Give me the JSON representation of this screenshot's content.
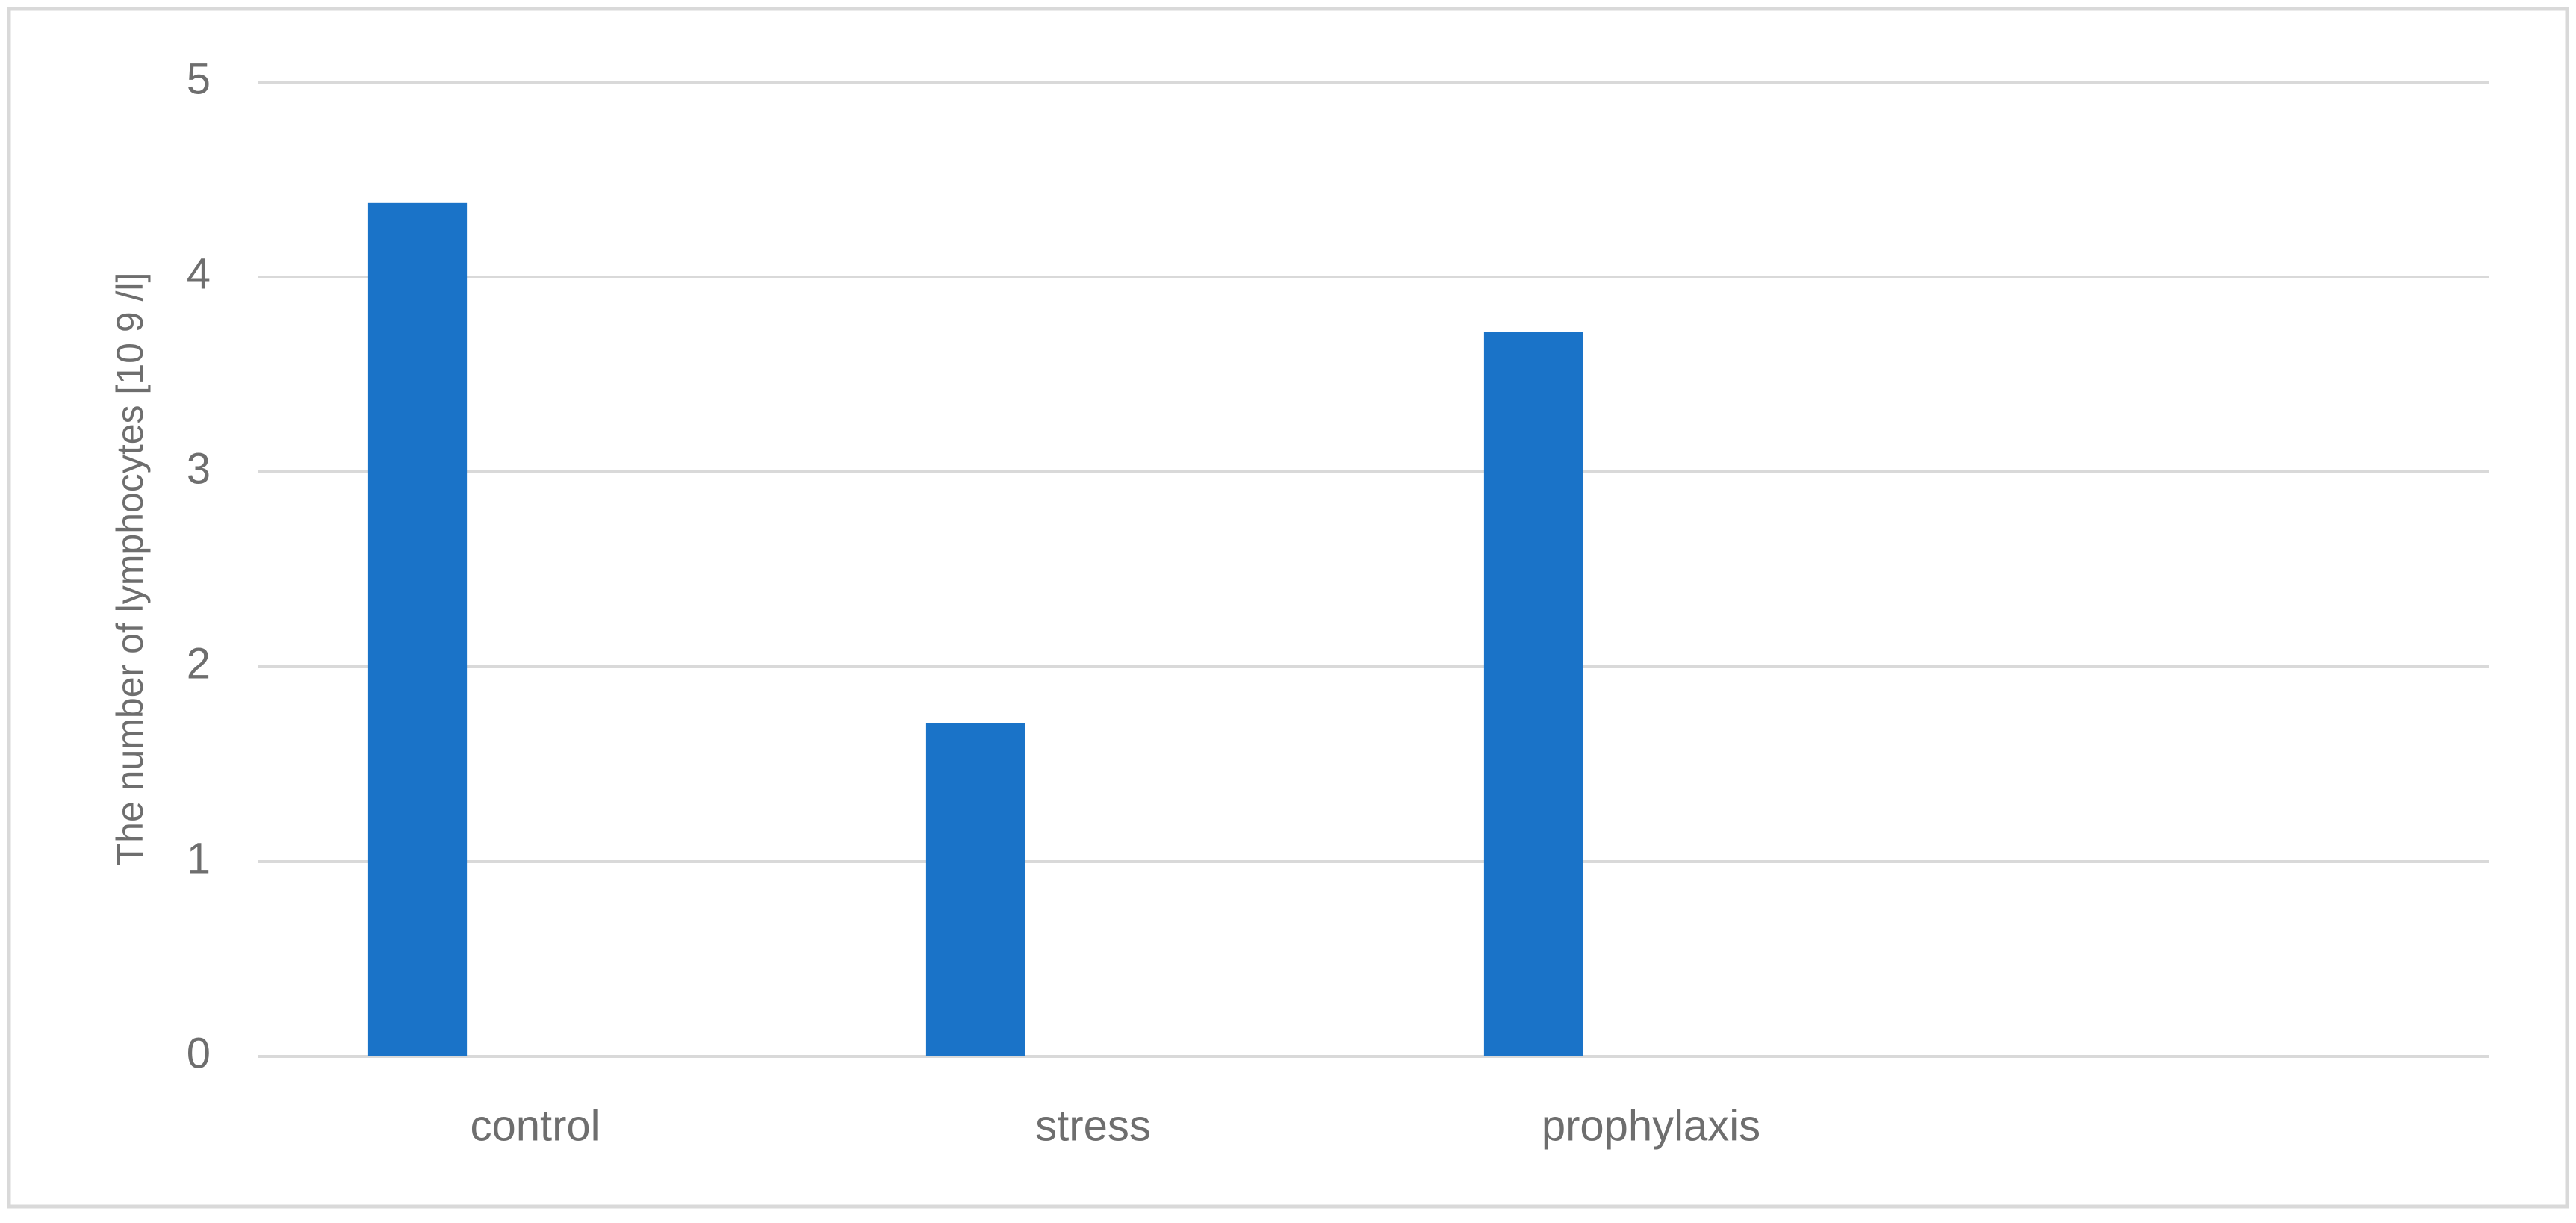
{
  "chart_data": {
    "type": "bar",
    "y_axis_label": "The number of lymphocytes [10 9 /l]",
    "categories": [
      "control",
      "stress",
      "prophylaxis",
      null
    ],
    "values": [
      4.38,
      1.71,
      3.72,
      null
    ],
    "color": "#1a73c8",
    "ylim": [
      0,
      5
    ],
    "yticks": [
      0,
      1,
      2,
      3,
      4,
      5
    ],
    "grid": true
  }
}
